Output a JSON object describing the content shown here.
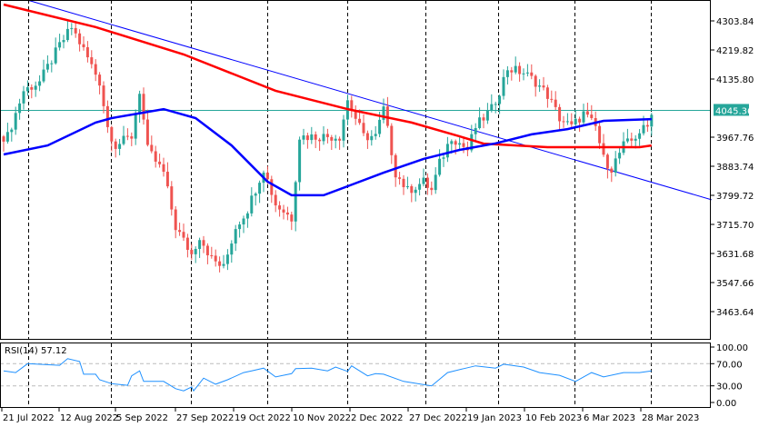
{
  "chart_data": {
    "type": "candlestick",
    "x_unit": "bar index (daily bars)",
    "colors": {
      "bull": "#26a69a",
      "bear": "#ef5350",
      "ma_fast": "#0000ff",
      "ma_slow": "#ff0000",
      "trendline": "#0000ff",
      "rsi": "#1e90ff",
      "price_line": "#26a69a"
    },
    "price_axis": {
      "ticks": [
        "4303.84",
        "4219.82",
        "4135.80",
        "4045.36",
        "3967.76",
        "3883.74",
        "3799.72",
        "3715.70",
        "3631.68",
        "3547.66",
        "3463.64"
      ],
      "ylim": [
        3420,
        4355
      ]
    },
    "current_price": "4045.36",
    "date_labels": [
      "21 Jul 2022",
      "12 Aug 2022",
      "5 Sep 2022",
      "27 Sep 2022",
      "19 Oct 2022",
      "10 Nov 2022",
      "2 Dec 2022",
      "27 Dec 2022",
      "19 Jan 2023",
      "10 Feb 2023",
      "6 Mar 2023",
      "28 Mar 2023"
    ],
    "close_keypoints": [
      [
        1,
        3970
      ],
      [
        5,
        4102
      ],
      [
        9,
        4128
      ],
      [
        14,
        4233
      ],
      [
        17,
        4285
      ],
      [
        20,
        4220
      ],
      [
        24,
        4128
      ],
      [
        26,
        3997
      ],
      [
        28,
        3944
      ],
      [
        32,
        3970
      ],
      [
        34,
        4102
      ],
      [
        36,
        3931
      ],
      [
        40,
        3865
      ],
      [
        43,
        3708
      ],
      [
        47,
        3629
      ],
      [
        49,
        3682
      ],
      [
        52,
        3616
      ],
      [
        55,
        3590
      ],
      [
        58,
        3708
      ],
      [
        61,
        3760
      ],
      [
        65,
        3878
      ],
      [
        68,
        3774
      ],
      [
        72,
        3734
      ],
      [
        74,
        3970
      ],
      [
        78,
        3970
      ],
      [
        84,
        3970
      ],
      [
        86,
        4075
      ],
      [
        90,
        3970
      ],
      [
        93,
        3970
      ],
      [
        95,
        4049
      ],
      [
        98,
        3865
      ],
      [
        101,
        3813
      ],
      [
        105,
        3839
      ],
      [
        107,
        3813
      ],
      [
        109,
        3892
      ],
      [
        112,
        3970
      ],
      [
        116,
        3931
      ],
      [
        118,
        3997
      ],
      [
        122,
        4049
      ],
      [
        124,
        4102
      ],
      [
        126,
        4167
      ],
      [
        130,
        4154
      ],
      [
        133,
        4128
      ],
      [
        136,
        4089
      ],
      [
        139,
        4023
      ],
      [
        142,
        3997
      ],
      [
        145,
        4036
      ],
      [
        148,
        3997
      ],
      [
        150,
        3905
      ],
      [
        152,
        3878
      ],
      [
        155,
        3944
      ],
      [
        157,
        3957
      ],
      [
        159,
        3984
      ],
      [
        161,
        3997
      ],
      [
        162,
        4045
      ]
    ],
    "ma_slow": [
      [
        0,
        4351
      ],
      [
        23,
        4286
      ],
      [
        45,
        4207
      ],
      [
        68,
        4102
      ],
      [
        86,
        4049
      ],
      [
        102,
        4010
      ],
      [
        114,
        3970
      ],
      [
        120,
        3949
      ],
      [
        136,
        3939
      ],
      [
        148,
        3939
      ],
      [
        159,
        3939
      ],
      [
        162,
        3944
      ]
    ],
    "ma_fast": [
      [
        0,
        3918
      ],
      [
        11,
        3944
      ],
      [
        23,
        4010
      ],
      [
        27,
        4023
      ],
      [
        40,
        4049
      ],
      [
        48,
        4023
      ],
      [
        57,
        3944
      ],
      [
        66,
        3839
      ],
      [
        72,
        3800
      ],
      [
        80,
        3800
      ],
      [
        86,
        3826
      ],
      [
        95,
        3865
      ],
      [
        105,
        3905
      ],
      [
        114,
        3931
      ],
      [
        123,
        3950
      ],
      [
        132,
        3976
      ],
      [
        141,
        3991
      ],
      [
        150,
        4015
      ],
      [
        162,
        4020
      ]
    ],
    "trendline": [
      [
        6,
        4364
      ],
      [
        177,
        3787
      ]
    ],
    "rsi": {
      "label": "RSI(14) 57.12",
      "ticks": [
        "100.00",
        "70.00",
        "30.00",
        "0.00"
      ],
      "levels": [
        70,
        30
      ],
      "values": [
        [
          0,
          57
        ],
        [
          3,
          54
        ],
        [
          6,
          70
        ],
        [
          14,
          67
        ],
        [
          16,
          79
        ],
        [
          19,
          74
        ],
        [
          20,
          51
        ],
        [
          23,
          51
        ],
        [
          24,
          41
        ],
        [
          27,
          34
        ],
        [
          31,
          31
        ],
        [
          32,
          48
        ],
        [
          34,
          57
        ],
        [
          35,
          38
        ],
        [
          40,
          38
        ],
        [
          43,
          25
        ],
        [
          45,
          21
        ],
        [
          47,
          28
        ],
        [
          47.5,
          21
        ],
        [
          50,
          44
        ],
        [
          53,
          33
        ],
        [
          56,
          41
        ],
        [
          60,
          54
        ],
        [
          62,
          57
        ],
        [
          65,
          62
        ],
        [
          68,
          46
        ],
        [
          72,
          52
        ],
        [
          73,
          61
        ],
        [
          77,
          62
        ],
        [
          81,
          57
        ],
        [
          83,
          64
        ],
        [
          86,
          56
        ],
        [
          87,
          66
        ],
        [
          91,
          48
        ],
        [
          93,
          52
        ],
        [
          95,
          51
        ],
        [
          100,
          38
        ],
        [
          107,
          30
        ],
        [
          111,
          54
        ],
        [
          115,
          61
        ],
        [
          118,
          66
        ],
        [
          123,
          62
        ],
        [
          125,
          69
        ],
        [
          130,
          64
        ],
        [
          134,
          54
        ],
        [
          139,
          49
        ],
        [
          143,
          38
        ],
        [
          147,
          54
        ],
        [
          150,
          46
        ],
        [
          155,
          54
        ],
        [
          159,
          54
        ],
        [
          162,
          57
        ]
      ]
    }
  }
}
